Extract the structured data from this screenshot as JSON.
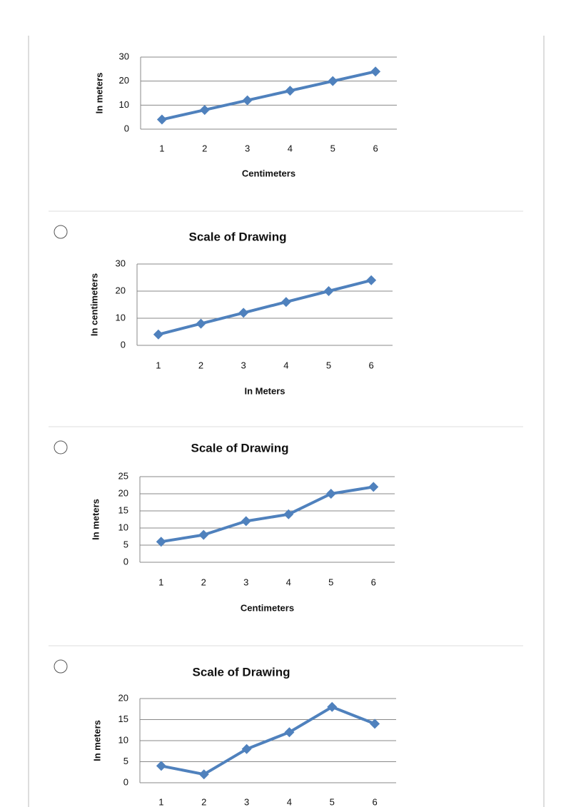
{
  "chart_data": [
    {
      "type": "line",
      "y_label": "In meters",
      "x_label": "Centimeters",
      "categories": [
        "1",
        "2",
        "3",
        "4",
        "5",
        "6"
      ],
      "values": [
        4,
        8,
        12,
        16,
        20,
        24
      ],
      "color": "#4f81bd",
      "ylim": [
        0,
        30
      ],
      "yticks": [
        0,
        10,
        20,
        30
      ],
      "grid": true
    },
    {
      "type": "line",
      "title": "Scale of Drawing",
      "y_label": "In centimeters",
      "x_label": "In Meters",
      "categories": [
        "1",
        "2",
        "3",
        "4",
        "5",
        "6"
      ],
      "values": [
        4,
        8,
        12,
        16,
        20,
        24
      ],
      "color": "#4f81bd",
      "ylim": [
        0,
        30
      ],
      "yticks": [
        0,
        10,
        20,
        30
      ],
      "grid": true
    },
    {
      "type": "line",
      "title": "Scale of Drawing",
      "y_label": "In meters",
      "x_label": "Centimeters",
      "categories": [
        "1",
        "2",
        "3",
        "4",
        "5",
        "6"
      ],
      "values": [
        6,
        8,
        12,
        14,
        20,
        22
      ],
      "color": "#4f81bd",
      "ylim": [
        0,
        25
      ],
      "yticks": [
        0,
        5,
        10,
        15,
        20,
        25
      ],
      "grid": true
    },
    {
      "type": "line",
      "title": "Scale of Drawing",
      "y_label": "In meters",
      "categories": [
        "1",
        "2",
        "3",
        "4",
        "5",
        "6"
      ],
      "values": [
        4,
        2,
        8,
        12,
        18,
        14
      ],
      "color": "#4f81bd",
      "ylim": [
        0,
        20
      ],
      "yticks": [
        0,
        5,
        10,
        15,
        20
      ],
      "grid": true
    }
  ]
}
